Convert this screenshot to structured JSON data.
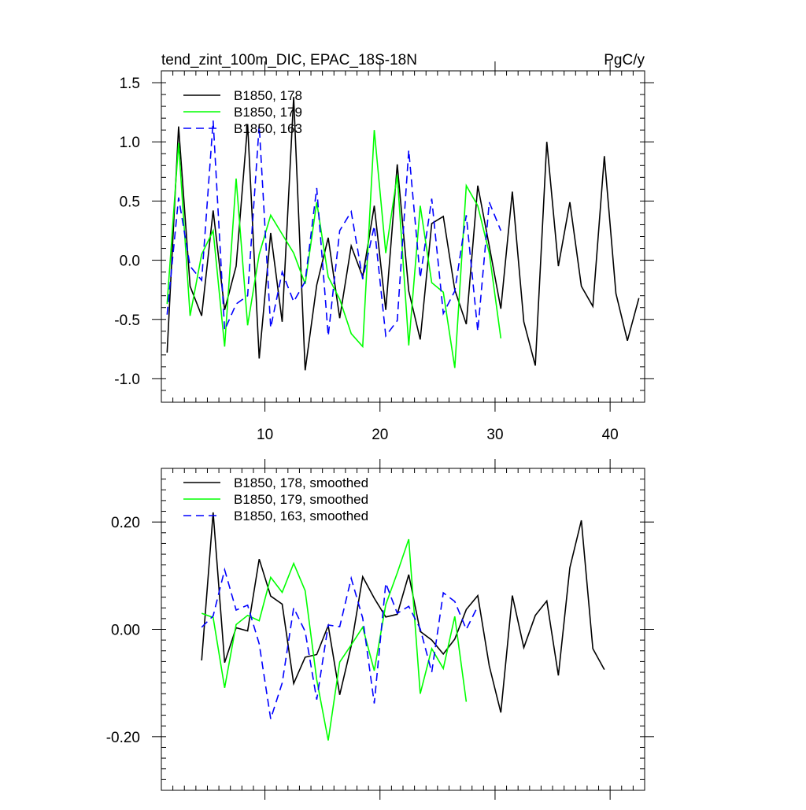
{
  "chart_data": [
    {
      "type": "line",
      "title": "tend_zint_100m_DIC, EPAC_18S-18N",
      "units": "PgC/y",
      "xlabel": "",
      "ylabel": "",
      "xlim": [
        1,
        43
      ],
      "ylim": [
        -1.2,
        1.6
      ],
      "x_ticks": [
        10,
        20,
        30,
        40
      ],
      "x_tick_labels": [
        "10",
        "20",
        "30",
        "40"
      ],
      "y_ticks": [
        -1.0,
        -0.5,
        0.0,
        0.5,
        1.0,
        1.5
      ],
      "y_tick_labels": [
        "-1.0",
        "-0.5",
        "0.0",
        "0.5",
        "1.0",
        "1.5"
      ],
      "legend_position": "top-left",
      "series": [
        {
          "name": "B1850, 178",
          "color": "#000000",
          "dash": "solid",
          "x_start": 1.5,
          "values": [
            -0.78,
            1.13,
            -0.22,
            -0.47,
            0.42,
            -0.42,
            -0.05,
            1.15,
            -0.83,
            0.23,
            -0.52,
            1.38,
            -0.93,
            -0.21,
            0.19,
            -0.49,
            0.12,
            -0.14,
            0.46,
            -0.42,
            0.81,
            -0.26,
            -0.67,
            0.31,
            0.37,
            -0.25,
            -0.54,
            0.63,
            0.12,
            -0.41,
            0.58,
            -0.52,
            -0.89,
            1.0,
            -0.05,
            0.49,
            -0.22,
            -0.39,
            0.88,
            -0.28,
            -0.68,
            -0.32
          ]
        },
        {
          "name": "B1850, 179",
          "color": "#00ff00",
          "dash": "solid",
          "x_start": 1.5,
          "values": [
            -0.37,
            0.99,
            -0.47,
            0.05,
            0.25,
            -0.73,
            0.69,
            -0.55,
            0.05,
            0.38,
            0.22,
            0.06,
            -0.2,
            0.49,
            -0.14,
            -0.33,
            -0.62,
            -0.73,
            1.1,
            0.06,
            0.72,
            -0.72,
            0.46,
            -0.19,
            -0.27,
            -0.91,
            0.63,
            0.46,
            0.06,
            -0.66
          ]
        },
        {
          "name": "B1850, 163",
          "color": "#0000ff",
          "dash": "dashed",
          "x_start": 1.5,
          "values": [
            -0.46,
            0.53,
            -0.05,
            -0.17,
            1.18,
            -0.59,
            -0.37,
            -0.3,
            1.14,
            -0.57,
            -0.1,
            -0.35,
            -0.18,
            0.61,
            -0.64,
            0.25,
            0.41,
            -0.16,
            0.29,
            -0.64,
            -0.51,
            0.93,
            -0.15,
            0.52,
            -0.45,
            -0.26,
            0.38,
            -0.6,
            0.49,
            0.25
          ]
        }
      ]
    },
    {
      "type": "line",
      "title": "",
      "xlabel": "",
      "ylabel": "",
      "xlim": [
        1,
        43
      ],
      "ylim": [
        -0.3,
        0.3
      ],
      "x_ticks": [
        10,
        20,
        30,
        40
      ],
      "x_tick_labels": [
        "",
        "",
        "",
        ""
      ],
      "y_ticks": [
        -0.2,
        0.0,
        0.2
      ],
      "y_tick_labels": [
        "-0.20",
        "0.00",
        "0.20"
      ],
      "legend_position": "top-left",
      "series": [
        {
          "name": "B1850, 178, smoothed",
          "color": "#000000",
          "dash": "solid",
          "x_start": 4.5,
          "values": [
            -0.058,
            0.218,
            -0.062,
            0.003,
            -0.003,
            0.131,
            0.062,
            0.047,
            -0.101,
            -0.052,
            -0.047,
            0.007,
            -0.122,
            -0.031,
            0.098,
            0.058,
            0.023,
            0.028,
            0.102,
            -0.004,
            -0.02,
            -0.046,
            -0.018,
            0.037,
            0.063,
            -0.068,
            -0.155,
            0.063,
            -0.034,
            0.026,
            0.053,
            -0.086,
            0.115,
            0.203,
            -0.036,
            -0.075
          ]
        },
        {
          "name": "B1850, 179, smoothed",
          "color": "#00ff00",
          "dash": "solid",
          "x_start": 4.5,
          "values": [
            0.03,
            0.022,
            -0.109,
            0.009,
            0.026,
            0.016,
            0.097,
            0.069,
            0.123,
            0.072,
            -0.094,
            -0.207,
            -0.061,
            -0.029,
            0.004,
            -0.077,
            0.046,
            0.105,
            0.168,
            -0.12,
            -0.036,
            -0.073,
            0.024,
            -0.135
          ]
        },
        {
          "name": "B1850, 163, smoothed",
          "color": "#0000ff",
          "dash": "dashed",
          "x_start": 4.5,
          "values": [
            0.004,
            0.025,
            0.111,
            0.036,
            0.045,
            -0.027,
            -0.167,
            -0.1,
            0.04,
            -0.004,
            -0.131,
            0.008,
            0.005,
            0.095,
            0.021,
            -0.138,
            0.086,
            0.03,
            0.043,
            0.001,
            -0.08,
            0.068,
            0.052,
            0.0,
            0.043
          ]
        }
      ]
    }
  ]
}
